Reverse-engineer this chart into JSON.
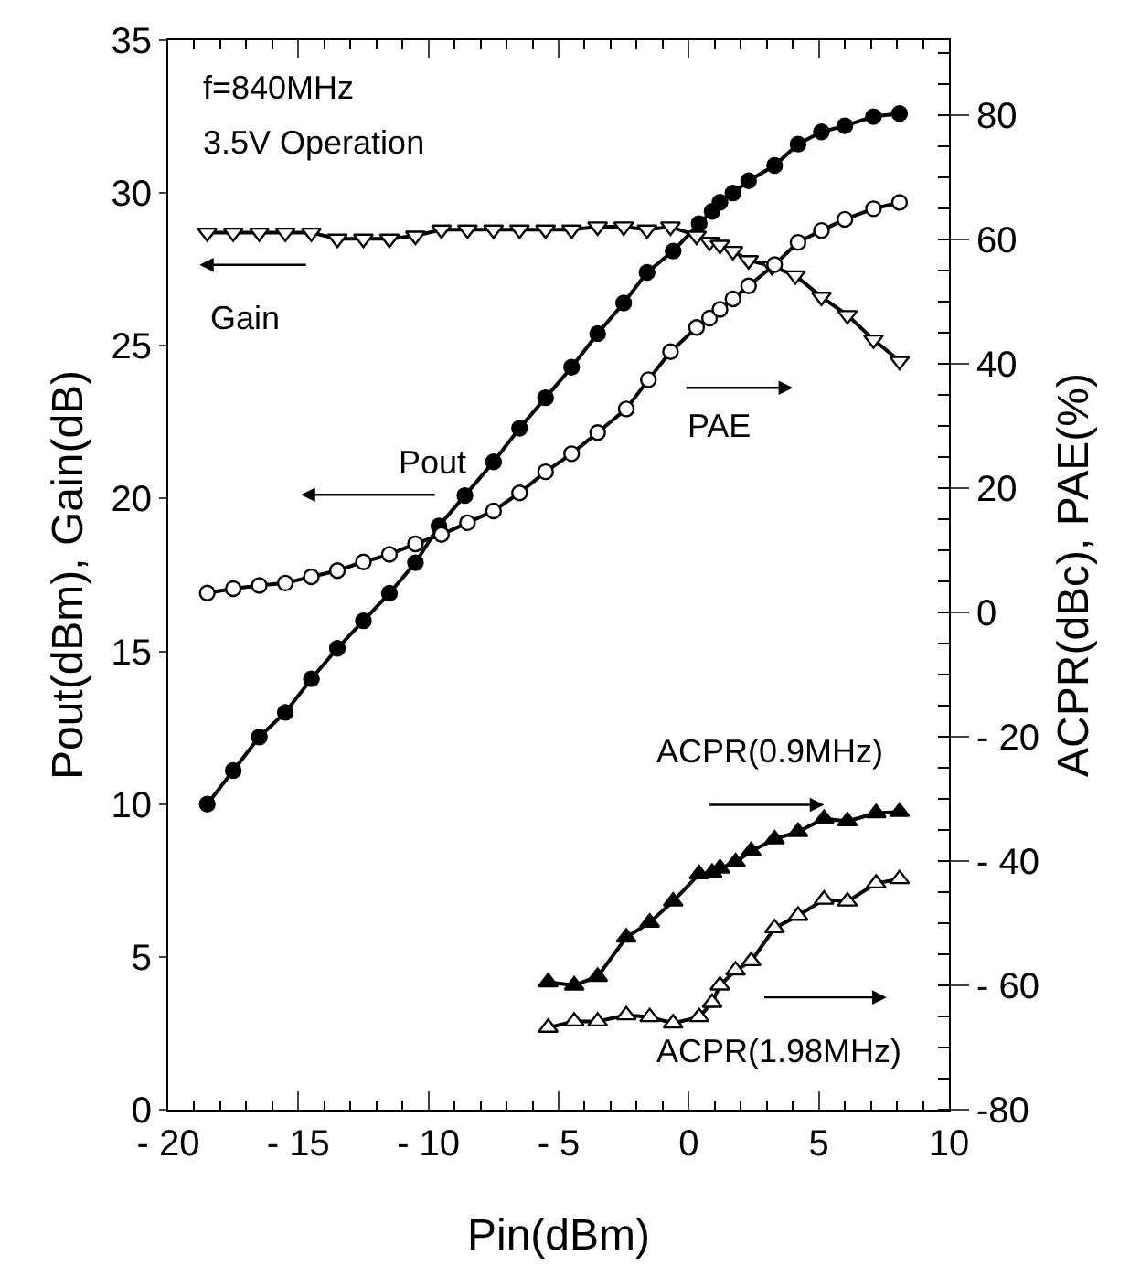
{
  "chart_data": {
    "type": "line",
    "xlabel": "Pin(dBm)",
    "ylabel": "Pout(dBm), Gain(dB)",
    "y2label": "ACPR(dBc), PAE(%)",
    "xlim": [
      -20,
      10
    ],
    "xticks": [
      {
        "value": -20,
        "label": "- 20"
      },
      {
        "value": -15,
        "label": "- 15"
      },
      {
        "value": -10,
        "label": "- 10"
      },
      {
        "value": -5,
        "label": "- 5"
      },
      0,
      5,
      10
    ],
    "ylim": [
      0,
      35
    ],
    "yticks": [
      0,
      5,
      10,
      15,
      20,
      25,
      30,
      35
    ],
    "y2lim": [
      -80,
      92
    ],
    "y2ticks": [
      {
        "value": -80,
        "label": "-80"
      },
      {
        "value": -60,
        "label": "- 60"
      },
      {
        "value": -40,
        "label": "- 40"
      },
      {
        "value": -20,
        "label": "- 20"
      },
      0,
      20,
      40,
      60,
      80
    ],
    "line_style": "solid",
    "annotations": [
      "f=840MHz",
      "3.5V Operation",
      "Gain",
      "Pout",
      "PAE",
      "ACPR(0.9MHz)",
      "ACPR(1.98MHz)"
    ],
    "series": [
      {
        "color": "#000000",
        "marker": "circle",
        "x": [
          -18.5,
          -17.5,
          -16.5,
          -15.5,
          -14.5,
          -13.5,
          -12.5,
          -11.5,
          -10.5,
          -9.6,
          -8.6,
          -7.5,
          -6.5,
          -5.5,
          -4.5,
          -3.5,
          -2.5,
          -1.6,
          -0.6,
          0.4,
          0.9,
          1.2,
          1.7,
          2.3,
          3.3,
          4.2,
          5.1,
          6.0,
          7.1,
          8.1
        ],
        "values": [
          10.0,
          11.1,
          12.2,
          13.0,
          14.1,
          15.1,
          16.0,
          16.9,
          17.9,
          19.1,
          20.1,
          21.2,
          22.3,
          23.3,
          24.3,
          25.4,
          26.4,
          27.4,
          28.1,
          29.0,
          29.4,
          29.7,
          30.0,
          30.4,
          30.9,
          31.6,
          32.0,
          32.2,
          32.5,
          32.6
        ]
      },
      {
        "color": "#000000",
        "marker": "triangle-down-open",
        "x": [
          -18.5,
          -17.5,
          -16.5,
          -15.5,
          -14.5,
          -13.5,
          -12.5,
          -11.5,
          -10.5,
          -9.5,
          -8.5,
          -7.5,
          -6.5,
          -5.5,
          -4.5,
          -3.5,
          -2.5,
          -1.6,
          -0.7,
          0.3,
          0.8,
          1.2,
          1.7,
          2.3,
          3.2,
          4.1,
          5.1,
          6.1,
          7.1,
          8.1
        ],
        "values": [
          28.7,
          28.7,
          28.7,
          28.7,
          28.7,
          28.5,
          28.5,
          28.5,
          28.6,
          28.8,
          28.8,
          28.8,
          28.8,
          28.8,
          28.8,
          28.9,
          28.9,
          28.8,
          28.9,
          28.6,
          28.4,
          28.3,
          28.1,
          27.8,
          27.6,
          27.3,
          26.6,
          26.0,
          25.2,
          24.5
        ]
      },
      {
        "color": "#000000",
        "marker": "circle-open",
        "axis": "y2",
        "x": [
          -18.5,
          -17.5,
          -16.5,
          -15.5,
          -14.5,
          -13.5,
          -12.5,
          -11.5,
          -10.5,
          -9.5,
          -8.5,
          -7.5,
          -6.5,
          -5.5,
          -4.5,
          -3.5,
          -2.4,
          -1.55,
          -0.7,
          0.3,
          0.8,
          1.2,
          1.7,
          2.3,
          3.3,
          4.2,
          5.1,
          6.0,
          7.1,
          8.1
        ],
        "values": [
          3.1,
          3.8,
          4.3,
          4.7,
          5.7,
          6.7,
          8.1,
          9.3,
          11.0,
          12.5,
          14.4,
          16.3,
          19.2,
          22.6,
          25.5,
          28.9,
          32.7,
          37.4,
          41.9,
          45.8,
          47.3,
          48.7,
          50.4,
          52.5,
          55.9,
          59.5,
          61.4,
          63.2,
          64.9,
          65.9
        ]
      },
      {
        "color": "#000000",
        "marker": "triangle",
        "axis": "y2",
        "x": [
          -5.4,
          -4.4,
          -3.5,
          -2.4,
          -1.5,
          -0.6,
          0.4,
          0.9,
          1.2,
          1.8,
          2.4,
          3.3,
          4.2,
          5.2,
          6.1,
          7.2,
          8.1
        ],
        "values": [
          -59.5,
          -60.0,
          -58.6,
          -52.3,
          -49.9,
          -46.5,
          -42.1,
          -41.9,
          -41.2,
          -40.2,
          -38.4,
          -36.5,
          -35.3,
          -33.2,
          -33.6,
          -32.3,
          -32.1
        ]
      },
      {
        "color": "#000000",
        "marker": "triangle-open",
        "axis": "y2",
        "x": [
          -5.4,
          -4.4,
          -3.5,
          -2.4,
          -1.5,
          -0.6,
          0.4,
          0.9,
          1.2,
          1.8,
          2.4,
          3.3,
          4.2,
          5.2,
          6.1,
          7.2,
          8.1
        ],
        "values": [
          -66.8,
          -65.8,
          -65.8,
          -64.8,
          -65.1,
          -66.1,
          -65.1,
          -62.8,
          -60.0,
          -57.6,
          -56.1,
          -50.8,
          -48.8,
          -46.2,
          -46.5,
          -43.6,
          -42.9
        ]
      }
    ]
  }
}
